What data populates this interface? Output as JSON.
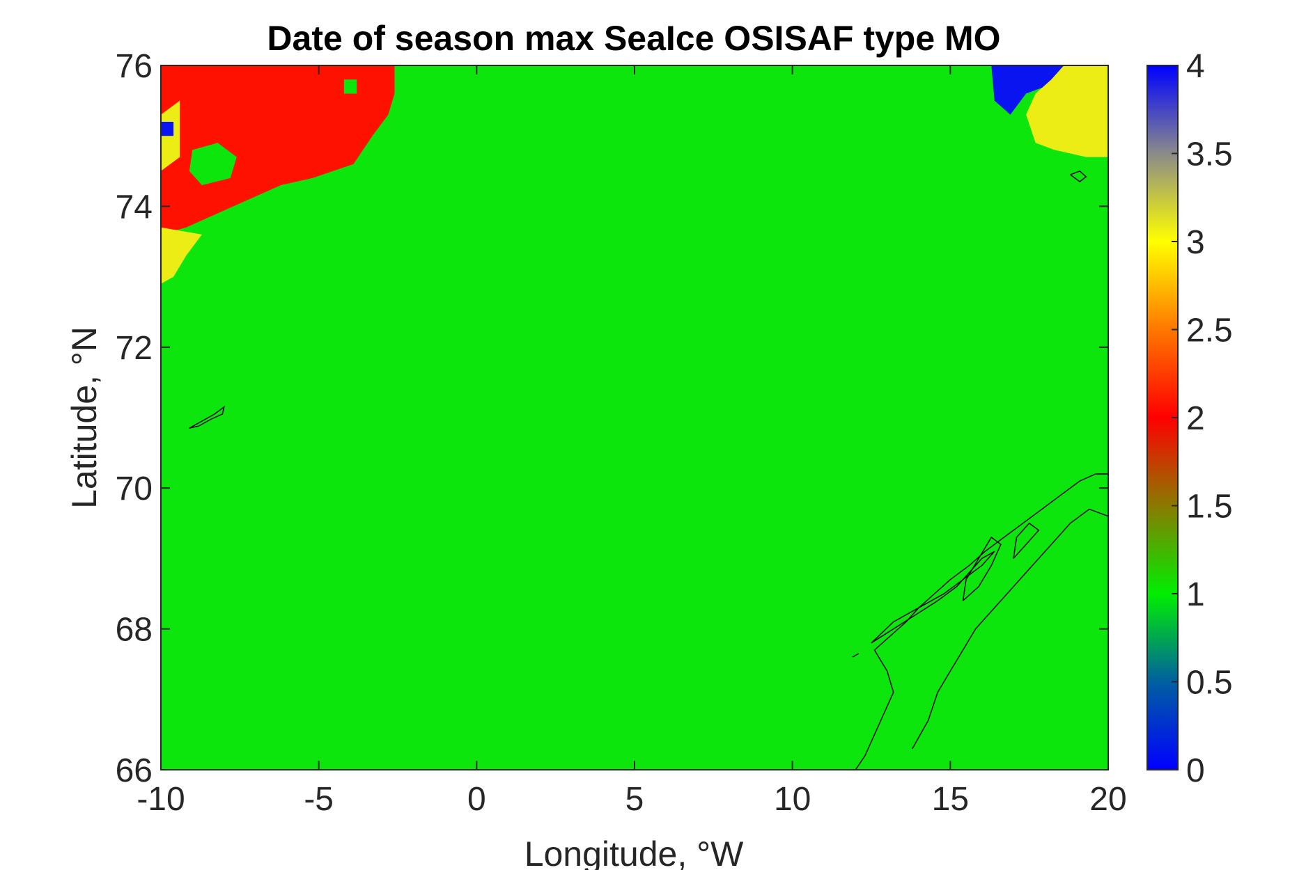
{
  "chart_data": {
    "type": "heatmap",
    "title": "Date of season max SeaIce OSISAF type MO",
    "xlabel": "Longitude, °W",
    "ylabel": "Latitude, °N",
    "xlim": [
      -10,
      20
    ],
    "ylim": [
      66,
      76
    ],
    "xticks": [
      -10,
      -5,
      0,
      5,
      10,
      15,
      20
    ],
    "xtick_labels": [
      "-10",
      "-5",
      "0",
      "5",
      "10",
      "15",
      "20"
    ],
    "yticks": [
      66,
      68,
      70,
      72,
      74,
      76
    ],
    "ytick_labels": [
      "66",
      "68",
      "70",
      "72",
      "74",
      "76"
    ],
    "background_value": 1,
    "regions": [
      {
        "name": "red-region-northwest",
        "value": 2,
        "polygon": [
          [
            -10,
            76
          ],
          [
            -2.6,
            76
          ],
          [
            -2.6,
            75.6
          ],
          [
            -2.8,
            75.3
          ],
          [
            -3.3,
            75.0
          ],
          [
            -3.9,
            74.6
          ],
          [
            -5.2,
            74.4
          ],
          [
            -6.2,
            74.3
          ],
          [
            -7.2,
            74.1
          ],
          [
            -8.2,
            73.9
          ],
          [
            -9.2,
            73.7
          ],
          [
            -10,
            73.6
          ]
        ]
      },
      {
        "name": "green-patch-in-red-1",
        "value": 1,
        "polygon": [
          [
            -9.0,
            74.8
          ],
          [
            -8.2,
            74.9
          ],
          [
            -7.6,
            74.7
          ],
          [
            -7.8,
            74.4
          ],
          [
            -8.7,
            74.3
          ],
          [
            -9.1,
            74.5
          ]
        ]
      },
      {
        "name": "green-patch-in-red-2",
        "value": 1,
        "polygon": [
          [
            -4.2,
            75.8
          ],
          [
            -3.8,
            75.8
          ],
          [
            -3.8,
            75.6
          ],
          [
            -4.2,
            75.6
          ]
        ]
      },
      {
        "name": "yellow-region-west",
        "value": 3,
        "polygon": [
          [
            -10,
            73.7
          ],
          [
            -8.7,
            73.6
          ],
          [
            -9.2,
            73.3
          ],
          [
            -9.6,
            73.0
          ],
          [
            -10,
            72.9
          ]
        ]
      },
      {
        "name": "yellow-strip-west",
        "value": 3,
        "polygon": [
          [
            -10,
            75.3
          ],
          [
            -9.4,
            75.5
          ],
          [
            -9.4,
            74.7
          ],
          [
            -10,
            74.5
          ]
        ]
      },
      {
        "name": "blue-cell-west",
        "value": 4,
        "polygon": [
          [
            -10,
            75.2
          ],
          [
            -9.6,
            75.2
          ],
          [
            -9.6,
            75.0
          ],
          [
            -10,
            75.0
          ]
        ]
      },
      {
        "name": "blue-region-northeast",
        "value": 4,
        "polygon": [
          [
            16.3,
            76
          ],
          [
            18.6,
            76
          ],
          [
            18.0,
            75.7
          ],
          [
            17.4,
            75.6
          ],
          [
            16.9,
            75.3
          ],
          [
            16.4,
            75.5
          ]
        ]
      },
      {
        "name": "yellow-region-northeast",
        "value": 3,
        "polygon": [
          [
            18.6,
            76
          ],
          [
            20,
            76
          ],
          [
            20,
            74.7
          ],
          [
            19.3,
            74.7
          ],
          [
            18.3,
            74.8
          ],
          [
            17.7,
            74.9
          ],
          [
            17.4,
            75.3
          ],
          [
            17.7,
            75.6
          ],
          [
            18.2,
            75.8
          ]
        ]
      }
    ],
    "colorbar": {
      "min": 0,
      "max": 4,
      "ticks": [
        0,
        0.5,
        1,
        1.5,
        2,
        2.5,
        3,
        3.5,
        4
      ],
      "tick_labels": [
        "0",
        "0.5",
        "1",
        "1.5",
        "2",
        "2.5",
        "3",
        "3.5",
        "4"
      ],
      "stops": [
        {
          "value": 0,
          "color": "#0000ff"
        },
        {
          "value": 0.5,
          "color": "#0060a0"
        },
        {
          "value": 1,
          "color": "#00ee00"
        },
        {
          "value": 1.5,
          "color": "#8a7a00"
        },
        {
          "value": 2,
          "color": "#ff0000"
        },
        {
          "value": 2.5,
          "color": "#ff7700"
        },
        {
          "value": 3,
          "color": "#ffff00"
        },
        {
          "value": 3.5,
          "color": "#8a8a8a"
        },
        {
          "value": 4,
          "color": "#0000ff"
        }
      ]
    },
    "value_colors": {
      "1": "#0de60d",
      "2": "#ff1100",
      "3": "#eded16",
      "4": "#0a14f0"
    },
    "coastlines": [
      {
        "name": "jan-mayen",
        "points": [
          [
            -9.1,
            70.85
          ],
          [
            -8.7,
            70.95
          ],
          [
            -8.3,
            71.05
          ],
          [
            -8.0,
            71.15
          ],
          [
            -8.05,
            71.05
          ],
          [
            -8.4,
            70.98
          ],
          [
            -8.8,
            70.88
          ],
          [
            -9.1,
            70.85
          ]
        ]
      },
      {
        "name": "bear-island",
        "points": [
          [
            18.8,
            74.45
          ],
          [
            19.1,
            74.5
          ],
          [
            19.3,
            74.42
          ],
          [
            19.1,
            74.35
          ],
          [
            18.8,
            74.45
          ]
        ]
      },
      {
        "name": "norway-coast",
        "points": [
          [
            12.0,
            66.0
          ],
          [
            12.3,
            66.2
          ],
          [
            12.6,
            66.5
          ],
          [
            12.9,
            66.8
          ],
          [
            13.2,
            67.1
          ],
          [
            13.0,
            67.4
          ],
          [
            12.6,
            67.7
          ],
          [
            13.1,
            67.9
          ],
          [
            13.6,
            68.1
          ],
          [
            14.0,
            68.3
          ],
          [
            14.5,
            68.5
          ],
          [
            15.0,
            68.7
          ],
          [
            15.6,
            68.9
          ],
          [
            16.1,
            69.1
          ],
          [
            16.7,
            69.3
          ],
          [
            17.3,
            69.5
          ],
          [
            17.9,
            69.7
          ],
          [
            18.5,
            69.9
          ],
          [
            19.1,
            70.1
          ],
          [
            19.6,
            70.2
          ],
          [
            20.0,
            70.2
          ]
        ]
      },
      {
        "name": "lofoten-vesteralen",
        "points": [
          [
            12.5,
            67.8
          ],
          [
            13.2,
            68.0
          ],
          [
            13.9,
            68.2
          ],
          [
            14.6,
            68.4
          ],
          [
            15.2,
            68.6
          ],
          [
            15.6,
            68.8
          ],
          [
            16.0,
            69.0
          ],
          [
            16.4,
            69.1
          ],
          [
            16.0,
            68.9
          ],
          [
            15.4,
            68.7
          ],
          [
            14.8,
            68.5
          ],
          [
            14.0,
            68.3
          ],
          [
            13.2,
            68.1
          ],
          [
            12.5,
            67.8
          ]
        ]
      },
      {
        "name": "norway-inland-fjords",
        "points": [
          [
            13.8,
            66.3
          ],
          [
            14.3,
            66.7
          ],
          [
            14.6,
            67.1
          ],
          [
            15.0,
            67.4
          ],
          [
            15.4,
            67.7
          ],
          [
            15.8,
            68.0
          ],
          [
            16.4,
            68.3
          ],
          [
            17.0,
            68.6
          ],
          [
            17.6,
            68.9
          ],
          [
            18.2,
            69.2
          ],
          [
            18.8,
            69.5
          ],
          [
            19.4,
            69.7
          ],
          [
            20.0,
            69.6
          ]
        ]
      },
      {
        "name": "senja",
        "points": [
          [
            17.0,
            69.0
          ],
          [
            17.4,
            69.2
          ],
          [
            17.8,
            69.4
          ],
          [
            17.5,
            69.5
          ],
          [
            17.1,
            69.3
          ],
          [
            17.0,
            69.0
          ]
        ]
      },
      {
        "name": "hinnoya",
        "points": [
          [
            15.4,
            68.4
          ],
          [
            15.9,
            68.6
          ],
          [
            16.3,
            68.9
          ],
          [
            16.6,
            69.2
          ],
          [
            16.3,
            69.3
          ],
          [
            15.9,
            69.0
          ],
          [
            15.5,
            68.7
          ],
          [
            15.4,
            68.4
          ]
        ]
      },
      {
        "name": "outer-skerries",
        "points": [
          [
            11.9,
            67.6
          ],
          [
            12.1,
            67.65
          ]
        ]
      }
    ]
  }
}
